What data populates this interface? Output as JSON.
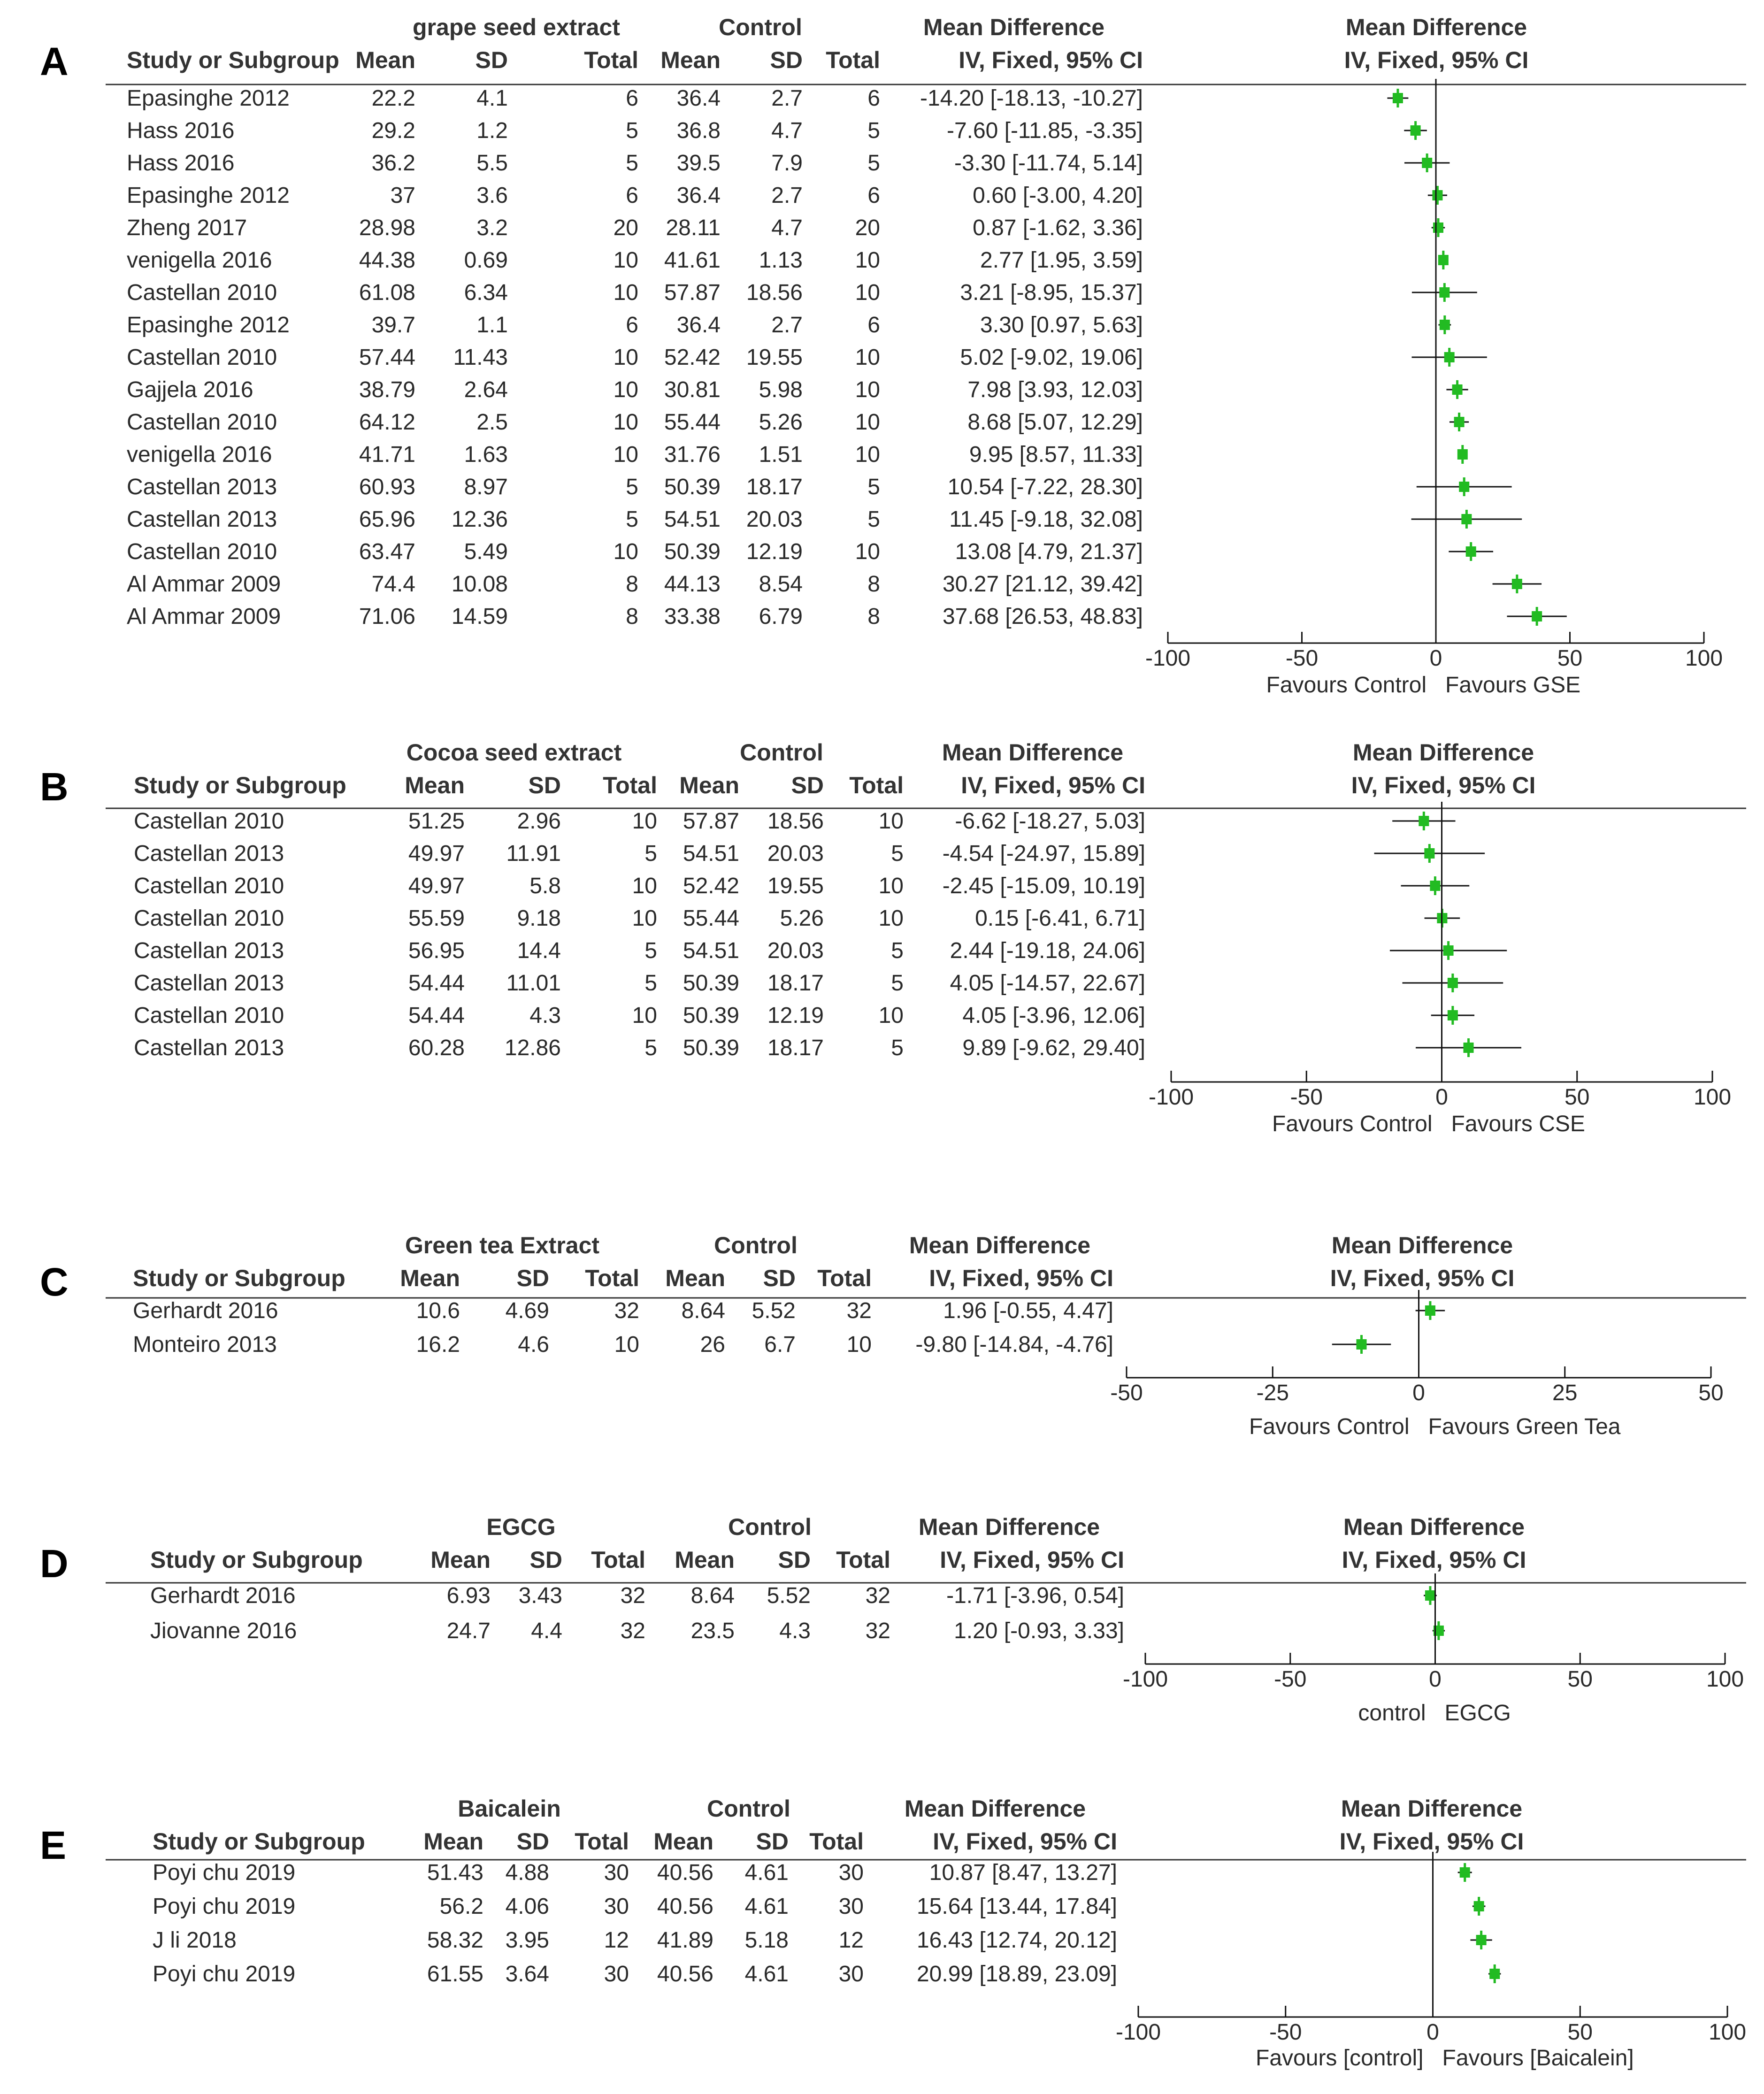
{
  "accent_color": "#22bb22",
  "chart_data": [
    {
      "type": "forest",
      "panel_label": "A",
      "headers": {
        "study": "Study or Subgroup",
        "treatment": "grape seed extract",
        "control": "Control",
        "mean": "Mean",
        "sd": "SD",
        "total": "Total",
        "md_title": "Mean Difference",
        "md_method": "IV, Fixed, 95% CI"
      },
      "xlim": [
        -100,
        100
      ],
      "ticks": [
        "-100",
        "-50",
        "0",
        "50",
        "100"
      ],
      "favours": {
        "left": "Favours Control",
        "right": "Favours GSE"
      },
      "rows": [
        {
          "study": "Epasinghe 2012",
          "t_mean": "22.2",
          "t_sd": "4.1",
          "t_total": "6",
          "c_mean": "36.4",
          "c_sd": "2.7",
          "c_total": "6",
          "md_text": "-14.20 [-18.13, -10.27]",
          "md": -14.2,
          "lo": -18.13,
          "hi": -10.27
        },
        {
          "study": "Hass 2016",
          "t_mean": "29.2",
          "t_sd": "1.2",
          "t_total": "5",
          "c_mean": "36.8",
          "c_sd": "4.7",
          "c_total": "5",
          "md_text": "-7.60 [-11.85, -3.35]",
          "md": -7.6,
          "lo": -11.85,
          "hi": -3.35
        },
        {
          "study": "Hass 2016",
          "t_mean": "36.2",
          "t_sd": "5.5",
          "t_total": "5",
          "c_mean": "39.5",
          "c_sd": "7.9",
          "c_total": "5",
          "md_text": "-3.30 [-11.74, 5.14]",
          "md": -3.3,
          "lo": -11.74,
          "hi": 5.14
        },
        {
          "study": "Epasinghe 2012",
          "t_mean": "37",
          "t_sd": "3.6",
          "t_total": "6",
          "c_mean": "36.4",
          "c_sd": "2.7",
          "c_total": "6",
          "md_text": "0.60 [-3.00, 4.20]",
          "md": 0.6,
          "lo": -3.0,
          "hi": 4.2
        },
        {
          "study": "Zheng 2017",
          "t_mean": "28.98",
          "t_sd": "3.2",
          "t_total": "20",
          "c_mean": "28.11",
          "c_sd": "4.7",
          "c_total": "20",
          "md_text": "0.87 [-1.62, 3.36]",
          "md": 0.87,
          "lo": -1.62,
          "hi": 3.36
        },
        {
          "study": "venigella 2016",
          "t_mean": "44.38",
          "t_sd": "0.69",
          "t_total": "10",
          "c_mean": "41.61",
          "c_sd": "1.13",
          "c_total": "10",
          "md_text": "2.77 [1.95, 3.59]",
          "md": 2.77,
          "lo": 1.95,
          "hi": 3.59
        },
        {
          "study": "Castellan 2010",
          "t_mean": "61.08",
          "t_sd": "6.34",
          "t_total": "10",
          "c_mean": "57.87",
          "c_sd": "18.56",
          "c_total": "10",
          "md_text": "3.21 [-8.95, 15.37]",
          "md": 3.21,
          "lo": -8.95,
          "hi": 15.37
        },
        {
          "study": "Epasinghe 2012",
          "t_mean": "39.7",
          "t_sd": "1.1",
          "t_total": "6",
          "c_mean": "36.4",
          "c_sd": "2.7",
          "c_total": "6",
          "md_text": "3.30 [0.97, 5.63]",
          "md": 3.3,
          "lo": 0.97,
          "hi": 5.63
        },
        {
          "study": "Castellan 2010",
          "t_mean": "57.44",
          "t_sd": "11.43",
          "t_total": "10",
          "c_mean": "52.42",
          "c_sd": "19.55",
          "c_total": "10",
          "md_text": "5.02 [-9.02, 19.06]",
          "md": 5.02,
          "lo": -9.02,
          "hi": 19.06
        },
        {
          "study": "Gajjela 2016",
          "t_mean": "38.79",
          "t_sd": "2.64",
          "t_total": "10",
          "c_mean": "30.81",
          "c_sd": "5.98",
          "c_total": "10",
          "md_text": "7.98 [3.93, 12.03]",
          "md": 7.98,
          "lo": 3.93,
          "hi": 12.03
        },
        {
          "study": "Castellan 2010",
          "t_mean": "64.12",
          "t_sd": "2.5",
          "t_total": "10",
          "c_mean": "55.44",
          "c_sd": "5.26",
          "c_total": "10",
          "md_text": "8.68 [5.07, 12.29]",
          "md": 8.68,
          "lo": 5.07,
          "hi": 12.29
        },
        {
          "study": "venigella 2016",
          "t_mean": "41.71",
          "t_sd": "1.63",
          "t_total": "10",
          "c_mean": "31.76",
          "c_sd": "1.51",
          "c_total": "10",
          "md_text": "9.95 [8.57, 11.33]",
          "md": 9.95,
          "lo": 8.57,
          "hi": 11.33
        },
        {
          "study": "Castellan 2013",
          "t_mean": "60.93",
          "t_sd": "8.97",
          "t_total": "5",
          "c_mean": "50.39",
          "c_sd": "18.17",
          "c_total": "5",
          "md_text": "10.54 [-7.22, 28.30]",
          "md": 10.54,
          "lo": -7.22,
          "hi": 28.3
        },
        {
          "study": "Castellan 2013",
          "t_mean": "65.96",
          "t_sd": "12.36",
          "t_total": "5",
          "c_mean": "54.51",
          "c_sd": "20.03",
          "c_total": "5",
          "md_text": "11.45 [-9.18, 32.08]",
          "md": 11.45,
          "lo": -9.18,
          "hi": 32.08
        },
        {
          "study": "Castellan 2010",
          "t_mean": "63.47",
          "t_sd": "5.49",
          "t_total": "10",
          "c_mean": "50.39",
          "c_sd": "12.19",
          "c_total": "10",
          "md_text": "13.08 [4.79, 21.37]",
          "md": 13.08,
          "lo": 4.79,
          "hi": 21.37
        },
        {
          "study": "Al Ammar 2009",
          "t_mean": "74.4",
          "t_sd": "10.08",
          "t_total": "8",
          "c_mean": "44.13",
          "c_sd": "8.54",
          "c_total": "8",
          "md_text": "30.27 [21.12, 39.42]",
          "md": 30.27,
          "lo": 21.12,
          "hi": 39.42
        },
        {
          "study": "Al Ammar 2009",
          "t_mean": "71.06",
          "t_sd": "14.59",
          "t_total": "8",
          "c_mean": "33.38",
          "c_sd": "6.79",
          "c_total": "8",
          "md_text": "37.68 [26.53, 48.83]",
          "md": 37.68,
          "lo": 26.53,
          "hi": 48.83
        }
      ]
    },
    {
      "type": "forest",
      "panel_label": "B",
      "headers": {
        "study": "Study or Subgroup",
        "treatment": "Cocoa seed extract",
        "control": "Control",
        "mean": "Mean",
        "sd": "SD",
        "total": "Total",
        "md_title": "Mean Difference",
        "md_method": "IV, Fixed, 95% CI"
      },
      "xlim": [
        -100,
        100
      ],
      "ticks": [
        "-100",
        "-50",
        "0",
        "50",
        "100"
      ],
      "favours": {
        "left": "Favours Control",
        "right": "Favours CSE"
      },
      "rows": [
        {
          "study": "Castellan 2010",
          "t_mean": "51.25",
          "t_sd": "2.96",
          "t_total": "10",
          "c_mean": "57.87",
          "c_sd": "18.56",
          "c_total": "10",
          "md_text": "-6.62 [-18.27, 5.03]",
          "md": -6.62,
          "lo": -18.27,
          "hi": 5.03
        },
        {
          "study": "Castellan 2013",
          "t_mean": "49.97",
          "t_sd": "11.91",
          "t_total": "5",
          "c_mean": "54.51",
          "c_sd": "20.03",
          "c_total": "5",
          "md_text": "-4.54 [-24.97, 15.89]",
          "md": -4.54,
          "lo": -24.97,
          "hi": 15.89
        },
        {
          "study": "Castellan 2010",
          "t_mean": "49.97",
          "t_sd": "5.8",
          "t_total": "10",
          "c_mean": "52.42",
          "c_sd": "19.55",
          "c_total": "10",
          "md_text": "-2.45 [-15.09, 10.19]",
          "md": -2.45,
          "lo": -15.09,
          "hi": 10.19
        },
        {
          "study": "Castellan 2010",
          "t_mean": "55.59",
          "t_sd": "9.18",
          "t_total": "10",
          "c_mean": "55.44",
          "c_sd": "5.26",
          "c_total": "10",
          "md_text": "0.15 [-6.41, 6.71]",
          "md": 0.15,
          "lo": -6.41,
          "hi": 6.71
        },
        {
          "study": "Castellan 2013",
          "t_mean": "56.95",
          "t_sd": "14.4",
          "t_total": "5",
          "c_mean": "54.51",
          "c_sd": "20.03",
          "c_total": "5",
          "md_text": "2.44 [-19.18, 24.06]",
          "md": 2.44,
          "lo": -19.18,
          "hi": 24.06
        },
        {
          "study": "Castellan 2013",
          "t_mean": "54.44",
          "t_sd": "11.01",
          "t_total": "5",
          "c_mean": "50.39",
          "c_sd": "18.17",
          "c_total": "5",
          "md_text": "4.05 [-14.57, 22.67]",
          "md": 4.05,
          "lo": -14.57,
          "hi": 22.67
        },
        {
          "study": "Castellan 2010",
          "t_mean": "54.44",
          "t_sd": "4.3",
          "t_total": "10",
          "c_mean": "50.39",
          "c_sd": "12.19",
          "c_total": "10",
          "md_text": "4.05 [-3.96, 12.06]",
          "md": 4.05,
          "lo": -3.96,
          "hi": 12.06
        },
        {
          "study": "Castellan 2013",
          "t_mean": "60.28",
          "t_sd": "12.86",
          "t_total": "5",
          "c_mean": "50.39",
          "c_sd": "18.17",
          "c_total": "5",
          "md_text": "9.89 [-9.62, 29.40]",
          "md": 9.89,
          "lo": -9.62,
          "hi": 29.4
        }
      ]
    },
    {
      "type": "forest",
      "panel_label": "C",
      "headers": {
        "study": "Study or Subgroup",
        "treatment": "Green tea Extract",
        "control": "Control",
        "mean": "Mean",
        "sd": "SD",
        "total": "Total",
        "md_title": "Mean Difference",
        "md_method": "IV, Fixed, 95% CI"
      },
      "xlim": [
        -50,
        50
      ],
      "ticks": [
        "-50",
        "-25",
        "0",
        "25",
        "50"
      ],
      "favours": {
        "left": "Favours Control",
        "right": "Favours Green Tea"
      },
      "rows": [
        {
          "study": "Gerhardt 2016",
          "t_mean": "10.6",
          "t_sd": "4.69",
          "t_total": "32",
          "c_mean": "8.64",
          "c_sd": "5.52",
          "c_total": "32",
          "md_text": "1.96 [-0.55, 4.47]",
          "md": 1.96,
          "lo": -0.55,
          "hi": 4.47
        },
        {
          "study": "Monteiro 2013",
          "t_mean": "16.2",
          "t_sd": "4.6",
          "t_total": "10",
          "c_mean": "26",
          "c_sd": "6.7",
          "c_total": "10",
          "md_text": "-9.80 [-14.84, -4.76]",
          "md": -9.8,
          "lo": -14.84,
          "hi": -4.76
        }
      ]
    },
    {
      "type": "forest",
      "panel_label": "D",
      "headers": {
        "study": "Study or Subgroup",
        "treatment": "EGCG",
        "control": "Control",
        "mean": "Mean",
        "sd": "SD",
        "total": "Total",
        "md_title": "Mean Difference",
        "md_method": "IV, Fixed, 95% CI"
      },
      "xlim": [
        -100,
        100
      ],
      "ticks": [
        "-100",
        "-50",
        "0",
        "50",
        "100"
      ],
      "favours": {
        "left": "control",
        "right": "EGCG"
      },
      "rows": [
        {
          "study": "Gerhardt 2016",
          "t_mean": "6.93",
          "t_sd": "3.43",
          "t_total": "32",
          "c_mean": "8.64",
          "c_sd": "5.52",
          "c_total": "32",
          "md_text": "-1.71 [-3.96, 0.54]",
          "md": -1.71,
          "lo": -3.96,
          "hi": 0.54
        },
        {
          "study": "Jiovanne 2016",
          "t_mean": "24.7",
          "t_sd": "4.4",
          "t_total": "32",
          "c_mean": "23.5",
          "c_sd": "4.3",
          "c_total": "32",
          "md_text": "1.20 [-0.93, 3.33]",
          "md": 1.2,
          "lo": -0.93,
          "hi": 3.33
        }
      ]
    },
    {
      "type": "forest",
      "panel_label": "E",
      "headers": {
        "study": "Study or Subgroup",
        "treatment": "Baicalein",
        "control": "Control",
        "mean": "Mean",
        "sd": "SD",
        "total": "Total",
        "md_title": "Mean Difference",
        "md_method": "IV, Fixed, 95% CI"
      },
      "xlim": [
        -100,
        100
      ],
      "ticks": [
        "-100",
        "-50",
        "0",
        "50",
        "100"
      ],
      "favours": {
        "left": "Favours [control]",
        "right": "Favours [Baicalein]"
      },
      "rows": [
        {
          "study": "Poyi chu 2019",
          "t_mean": "51.43",
          "t_sd": "4.88",
          "t_total": "30",
          "c_mean": "40.56",
          "c_sd": "4.61",
          "c_total": "30",
          "md_text": "10.87 [8.47, 13.27]",
          "md": 10.87,
          "lo": 8.47,
          "hi": 13.27
        },
        {
          "study": "Poyi chu 2019",
          "t_mean": "56.2",
          "t_sd": "4.06",
          "t_total": "30",
          "c_mean": "40.56",
          "c_sd": "4.61",
          "c_total": "30",
          "md_text": "15.64 [13.44, 17.84]",
          "md": 15.64,
          "lo": 13.44,
          "hi": 17.84
        },
        {
          "study": "J li 2018",
          "t_mean": "58.32",
          "t_sd": "3.95",
          "t_total": "12",
          "c_mean": "41.89",
          "c_sd": "5.18",
          "c_total": "12",
          "md_text": "16.43 [12.74, 20.12]",
          "md": 16.43,
          "lo": 12.74,
          "hi": 20.12
        },
        {
          "study": "Poyi chu 2019",
          "t_mean": "61.55",
          "t_sd": "3.64",
          "t_total": "30",
          "c_mean": "40.56",
          "c_sd": "4.61",
          "c_total": "30",
          "md_text": "20.99 [18.89, 23.09]",
          "md": 20.99,
          "lo": 18.89,
          "hi": 23.09
        }
      ]
    }
  ]
}
